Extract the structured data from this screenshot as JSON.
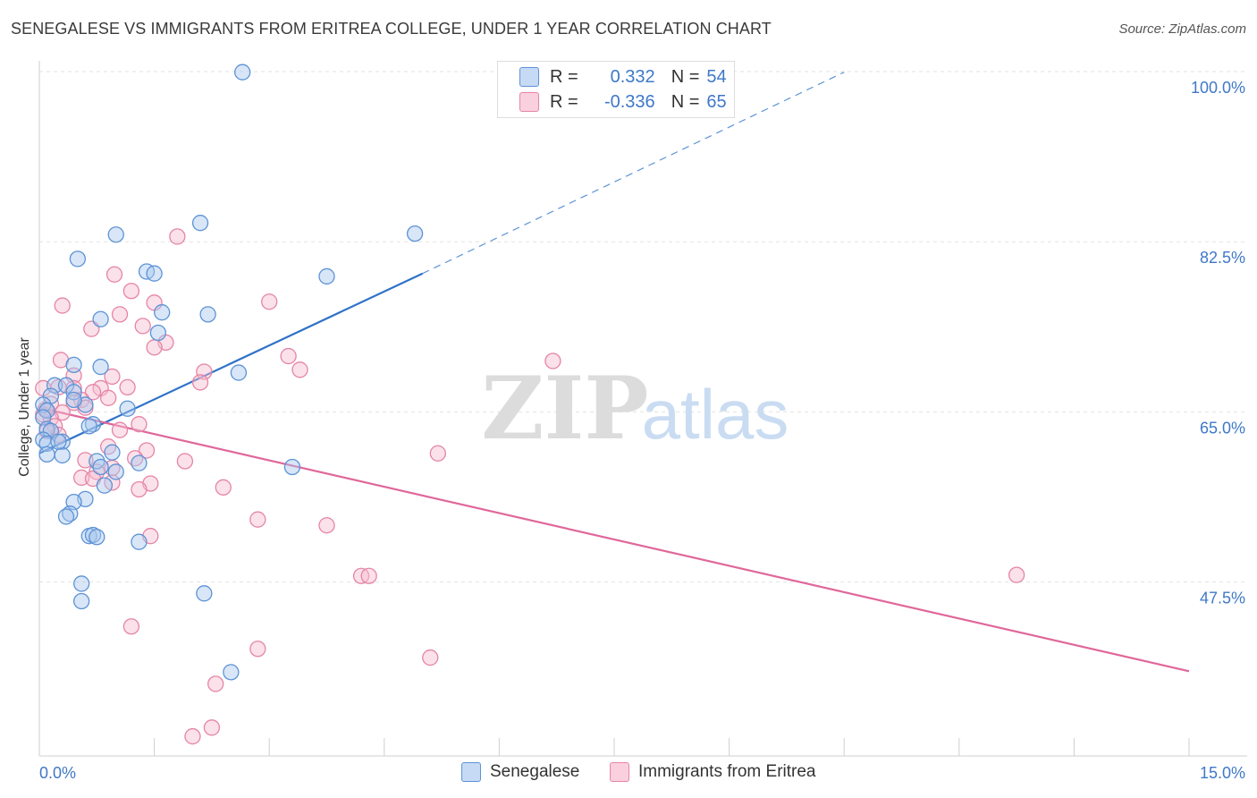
{
  "header": {
    "title": "SENEGALESE VS IMMIGRANTS FROM ERITREA COLLEGE, UNDER 1 YEAR CORRELATION CHART",
    "source": "Source: ZipAtlas.com"
  },
  "watermark": {
    "zip": "ZIP",
    "atlas": "atlas"
  },
  "colors": {
    "blue_fill": "#a9c8ee",
    "blue_stroke": "#5d93d6",
    "blue_line": "#2f72c8",
    "pink_fill": "#f6bcd0",
    "pink_stroke": "#e585a6",
    "pink_line": "#e0679a",
    "tick_label": "#3f78c8",
    "grid": "#e2e2e2"
  },
  "legend_top": [
    {
      "r_label": "R =",
      "r_value": "0.332",
      "n_label": "N =",
      "n_value": "54"
    },
    {
      "r_label": "R =",
      "r_value": "-0.336",
      "n_label": "N =",
      "n_value": "65"
    }
  ],
  "legend_bottom": [
    "Senegalese",
    "Immigrants from Eritrea"
  ],
  "chart_data": {
    "type": "scatter",
    "title": "SENEGALESE VS IMMIGRANTS FROM ERITREA COLLEGE, UNDER 1 YEAR CORRELATION CHART",
    "xlabel": "",
    "ylabel": "College, Under 1 year",
    "xlim": [
      0,
      15
    ],
    "ylim": [
      30,
      100
    ],
    "x_tick_labels": [
      {
        "value": 0,
        "label": "0.0%"
      },
      {
        "value": 15,
        "label": "15.0%"
      }
    ],
    "y_tick_labels": [
      {
        "value": 47.5,
        "label": "47.5%"
      },
      {
        "value": 65.0,
        "label": "65.0%"
      },
      {
        "value": 82.5,
        "label": "82.5%"
      },
      {
        "value": 100.0,
        "label": "100.0%"
      }
    ],
    "grid": true,
    "series": [
      {
        "name": "Senegalese",
        "color": "#5d93d6",
        "trend": {
          "x0": 0,
          "y0": 62.3,
          "x1": 5.0,
          "y1": 80.8,
          "extended_to_x": 10.5,
          "extended_y": 101.5
        },
        "points": [
          [
            2.65,
            101.5
          ],
          [
            2.1,
            86.0
          ],
          [
            1.0,
            84.8
          ],
          [
            4.9,
            84.9
          ],
          [
            0.5,
            82.3
          ],
          [
            1.4,
            81.0
          ],
          [
            1.5,
            80.8
          ],
          [
            3.75,
            80.5
          ],
          [
            2.2,
            76.6
          ],
          [
            1.6,
            76.8
          ],
          [
            0.8,
            76.1
          ],
          [
            1.55,
            74.7
          ],
          [
            0.45,
            71.4
          ],
          [
            0.8,
            71.2
          ],
          [
            2.6,
            70.6
          ],
          [
            0.2,
            69.3
          ],
          [
            0.35,
            69.3
          ],
          [
            0.45,
            68.6
          ],
          [
            0.15,
            68.2
          ],
          [
            0.6,
            67.3
          ],
          [
            0.05,
            67.3
          ],
          [
            0.1,
            66.7
          ],
          [
            1.15,
            66.9
          ],
          [
            0.05,
            66.0
          ],
          [
            0.7,
            65.3
          ],
          [
            0.65,
            65.1
          ],
          [
            0.1,
            64.8
          ],
          [
            0.15,
            64.6
          ],
          [
            0.05,
            63.7
          ],
          [
            0.3,
            63.5
          ],
          [
            0.1,
            63.3
          ],
          [
            0.95,
            62.4
          ],
          [
            0.3,
            62.1
          ],
          [
            0.1,
            62.2
          ],
          [
            0.75,
            61.5
          ],
          [
            1.3,
            61.3
          ],
          [
            0.8,
            60.9
          ],
          [
            3.3,
            60.9
          ],
          [
            1.0,
            60.4
          ],
          [
            0.85,
            59.0
          ],
          [
            0.6,
            57.6
          ],
          [
            0.45,
            57.3
          ],
          [
            0.4,
            56.1
          ],
          [
            0.35,
            55.8
          ],
          [
            0.65,
            53.8
          ],
          [
            0.7,
            53.9
          ],
          [
            0.75,
            53.7
          ],
          [
            1.3,
            53.2
          ],
          [
            0.55,
            48.9
          ],
          [
            2.15,
            47.9
          ],
          [
            0.55,
            47.1
          ],
          [
            2.5,
            39.8
          ],
          [
            0.25,
            63.5
          ],
          [
            0.45,
            67.8
          ]
        ]
      },
      {
        "name": "Immigrants from Eritrea",
        "color": "#e585a6",
        "trend": {
          "x0": 0,
          "y0": 67.0,
          "x1": 15.0,
          "y1": 39.9
        },
        "points": [
          [
            1.8,
            84.6
          ],
          [
            0.98,
            80.7
          ],
          [
            1.2,
            79.0
          ],
          [
            3.0,
            77.9
          ],
          [
            0.3,
            77.5
          ],
          [
            1.5,
            77.8
          ],
          [
            1.05,
            76.6
          ],
          [
            1.35,
            75.4
          ],
          [
            0.68,
            75.1
          ],
          [
            1.65,
            73.7
          ],
          [
            1.5,
            73.2
          ],
          [
            3.25,
            72.3
          ],
          [
            0.28,
            71.9
          ],
          [
            6.7,
            71.8
          ],
          [
            3.4,
            70.9
          ],
          [
            2.15,
            70.7
          ],
          [
            0.95,
            70.2
          ],
          [
            0.45,
            70.3
          ],
          [
            2.1,
            69.6
          ],
          [
            1.15,
            69.1
          ],
          [
            0.8,
            69.0
          ],
          [
            0.45,
            69.0
          ],
          [
            0.25,
            69.1
          ],
          [
            0.05,
            69.0
          ],
          [
            0.7,
            68.6
          ],
          [
            0.9,
            68.0
          ],
          [
            0.55,
            67.8
          ],
          [
            0.15,
            67.4
          ],
          [
            0.45,
            67.5
          ],
          [
            0.6,
            67.0
          ],
          [
            0.3,
            66.5
          ],
          [
            0.05,
            66.3
          ],
          [
            0.15,
            65.9
          ],
          [
            1.3,
            65.3
          ],
          [
            0.2,
            65.1
          ],
          [
            0.1,
            64.6
          ],
          [
            1.05,
            64.7
          ],
          [
            0.25,
            64.2
          ],
          [
            0.9,
            63.0
          ],
          [
            1.4,
            62.6
          ],
          [
            5.2,
            62.3
          ],
          [
            1.25,
            61.8
          ],
          [
            0.6,
            61.6
          ],
          [
            1.9,
            61.5
          ],
          [
            0.95,
            60.8
          ],
          [
            0.75,
            60.4
          ],
          [
            0.55,
            59.8
          ],
          [
            0.7,
            59.7
          ],
          [
            0.95,
            59.3
          ],
          [
            1.45,
            59.2
          ],
          [
            1.3,
            58.6
          ],
          [
            2.4,
            58.8
          ],
          [
            2.85,
            55.5
          ],
          [
            3.75,
            54.9
          ],
          [
            1.45,
            53.8
          ],
          [
            4.2,
            49.7
          ],
          [
            4.3,
            49.7
          ],
          [
            12.75,
            49.8
          ],
          [
            1.2,
            44.5
          ],
          [
            2.85,
            42.2
          ],
          [
            5.1,
            41.3
          ],
          [
            2.3,
            38.6
          ],
          [
            2.25,
            34.1
          ],
          [
            2.0,
            33.2
          ],
          [
            0.08,
            66.8
          ]
        ]
      }
    ]
  }
}
